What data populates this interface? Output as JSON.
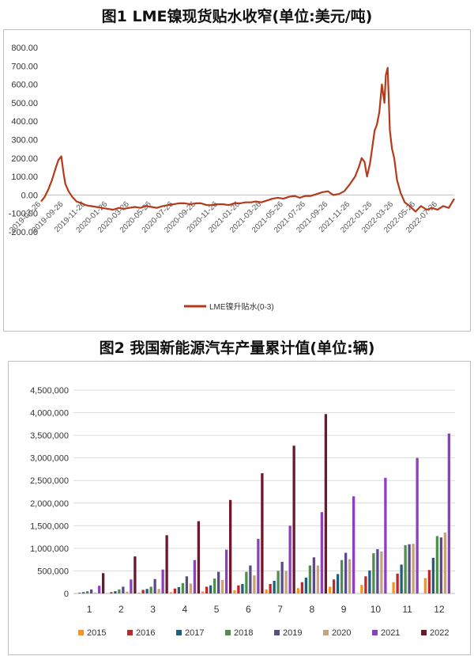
{
  "chart_data": [
    {
      "type": "line",
      "title": "图1  LME镍现货贴水收窄(单位:美元/吨)",
      "y_ticks": [
        "800.00",
        "700.00",
        "600.00",
        "500.00",
        "400.00",
        "300.00",
        "200.00",
        "100.00",
        "0.00",
        "-100.00",
        "-200.00"
      ],
      "ylim": [
        -200,
        800
      ],
      "x_ticks": [
        "2019-07-26",
        "2019-09-26",
        "2019-11-26",
        "2020-01-26",
        "2020-03-26",
        "2020-05-26",
        "2020-07-26",
        "2020-09-26",
        "2020-11-26",
        "2021-01-26",
        "2021-03-26",
        "2021-05-26",
        "2021-07-26",
        "2021-09-26",
        "2021-11-26",
        "2022-01-26",
        "2022-03-26",
        "2022-05-26",
        "2022-07-26"
      ],
      "legend_position": "bottom",
      "series": [
        {
          "name": "LME镍升贴水(0-3)",
          "color": "#B5391A",
          "x": [
            "2019-07-26",
            "2019-08-05",
            "2019-08-15",
            "2019-08-25",
            "2019-09-05",
            "2019-09-12",
            "2019-09-20",
            "2019-09-26",
            "2019-10-01",
            "2019-10-10",
            "2019-10-20",
            "2019-11-01",
            "2019-11-15",
            "2019-11-26",
            "2019-12-10",
            "2019-12-26",
            "2020-01-10",
            "2020-01-26",
            "2020-02-10",
            "2020-02-26",
            "2020-03-10",
            "2020-03-26",
            "2020-04-10",
            "2020-04-26",
            "2020-05-10",
            "2020-05-26",
            "2020-06-10",
            "2020-06-26",
            "2020-07-10",
            "2020-07-26",
            "2020-08-10",
            "2020-08-26",
            "2020-09-10",
            "2020-09-26",
            "2020-10-10",
            "2020-10-26",
            "2020-11-10",
            "2020-11-26",
            "2020-12-10",
            "2020-12-26",
            "2021-01-10",
            "2021-01-26",
            "2021-02-10",
            "2021-02-26",
            "2021-03-10",
            "2021-03-26",
            "2021-04-10",
            "2021-04-26",
            "2021-05-10",
            "2021-05-26",
            "2021-06-10",
            "2021-06-26",
            "2021-07-10",
            "2021-07-26",
            "2021-08-10",
            "2021-08-26",
            "2021-09-10",
            "2021-09-26",
            "2021-10-10",
            "2021-10-26",
            "2021-11-10",
            "2021-11-26",
            "2021-12-10",
            "2021-12-20",
            "2021-12-28",
            "2022-01-05",
            "2022-01-12",
            "2022-01-20",
            "2022-01-26",
            "2022-02-02",
            "2022-02-08",
            "2022-02-15",
            "2022-02-22",
            "2022-03-01",
            "2022-03-05",
            "2022-03-10",
            "2022-03-16",
            "2022-03-22",
            "2022-03-28",
            "2022-04-05",
            "2022-04-15",
            "2022-04-26",
            "2022-05-10",
            "2022-05-26",
            "2022-06-10",
            "2022-06-26",
            "2022-07-10",
            "2022-07-26",
            "2022-08-10",
            "2022-08-26",
            "2022-09-10"
          ],
          "values": [
            -35,
            -10,
            30,
            80,
            150,
            190,
            210,
            120,
            60,
            20,
            -10,
            -35,
            -45,
            -55,
            -60,
            -65,
            -70,
            -75,
            -80,
            -70,
            -75,
            -70,
            -65,
            -70,
            -60,
            -65,
            -70,
            -60,
            -55,
            -50,
            -45,
            -45,
            -50,
            -45,
            -45,
            -55,
            -55,
            -50,
            -50,
            -55,
            -45,
            -45,
            -40,
            -40,
            -35,
            -40,
            -30,
            -20,
            -15,
            -20,
            -10,
            -5,
            -15,
            -5,
            -5,
            5,
            15,
            20,
            0,
            5,
            20,
            60,
            100,
            150,
            200,
            180,
            100,
            170,
            250,
            350,
            380,
            450,
            600,
            500,
            650,
            690,
            350,
            250,
            200,
            80,
            10,
            -40,
            -60,
            -90,
            -60,
            -80,
            -70,
            -80,
            -60,
            -70,
            -20
          ]
        }
      ]
    },
    {
      "type": "bar",
      "title": "图2  我国新能源汽车产量累计值(单位:辆)",
      "categories": [
        "1",
        "2",
        "3",
        "4",
        "5",
        "6",
        "7",
        "8",
        "9",
        "10",
        "11",
        "12"
      ],
      "y_ticks": [
        "4,500,000",
        "4,000,000",
        "3,500,000",
        "3,000,000",
        "2,500,000",
        "2,000,000",
        "1,500,000",
        "1,000,000",
        "500,000",
        "0"
      ],
      "ylim": [
        0,
        4500000
      ],
      "legend_position": "bottom",
      "series": [
        {
          "name": "2015",
          "color": "#F7941D",
          "values": [
            5000,
            10000,
            20000,
            30000,
            45000,
            70000,
            90000,
            120000,
            150000,
            190000,
            250000,
            340000
          ]
        },
        {
          "name": "2016",
          "color": "#C0272D",
          "values": [
            15000,
            30000,
            80000,
            110000,
            150000,
            180000,
            210000,
            250000,
            310000,
            380000,
            440000,
            520000
          ]
        },
        {
          "name": "2017",
          "color": "#1F5F7A",
          "values": [
            30000,
            50000,
            100000,
            140000,
            180000,
            210000,
            280000,
            350000,
            430000,
            510000,
            640000,
            790000
          ]
        },
        {
          "name": "2018",
          "color": "#4E8F4E",
          "values": [
            50000,
            90000,
            150000,
            230000,
            330000,
            480000,
            500000,
            620000,
            740000,
            890000,
            1070000,
            1270000
          ]
        },
        {
          "name": "2019",
          "color": "#5C4B8B",
          "values": [
            90000,
            150000,
            320000,
            380000,
            480000,
            620000,
            700000,
            800000,
            900000,
            980000,
            1090000,
            1240000
          ]
        },
        {
          "name": "2020",
          "color": "#C9A27A",
          "values": [
            20000,
            40000,
            100000,
            220000,
            300000,
            400000,
            500000,
            620000,
            760000,
            930000,
            1100000,
            1350000
          ]
        },
        {
          "name": "2021",
          "color": "#8E3FC0",
          "values": [
            170000,
            310000,
            530000,
            740000,
            970000,
            1210000,
            1500000,
            1800000,
            2150000,
            2560000,
            3000000,
            3540000
          ]
        },
        {
          "name": "2022",
          "color": "#6B1A2A",
          "values": [
            450000,
            820000,
            1290000,
            1600000,
            2070000,
            2660000,
            3270000,
            3970000,
            null,
            null,
            null,
            null
          ]
        }
      ]
    }
  ]
}
